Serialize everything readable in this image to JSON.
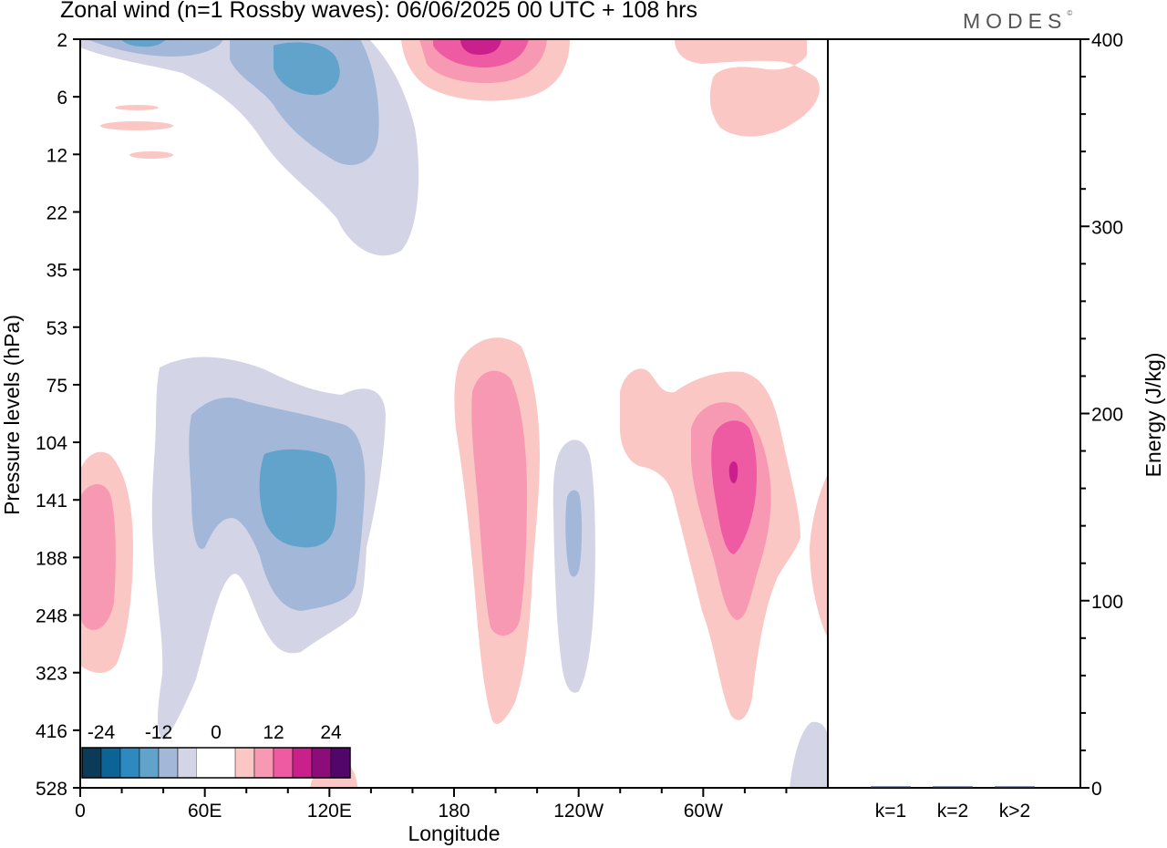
{
  "header": {
    "title": "Zonal wind (n=1 Rossby waves):  06/06/2025  00 UTC  + 108 hrs",
    "brand": "MODES",
    "brand_mark": "©"
  },
  "chart_data": [
    {
      "type": "contour",
      "xlabel": "Longitude",
      "ylabel": "Pressure levels (hPa)",
      "xticks": [
        "0",
        "60E",
        "120E",
        "180",
        "120W",
        "60W"
      ],
      "xtick_values_deg_east": [
        0,
        60,
        120,
        180,
        240,
        300
      ],
      "xlim_deg_east": [
        0,
        360
      ],
      "yticks": [
        "2",
        "6",
        "12",
        "22",
        "35",
        "53",
        "75",
        "104",
        "141",
        "188",
        "248",
        "323",
        "416",
        "528"
      ],
      "y_scale": "pressure levels (top = 2 hPa, bottom = 528 hPa)",
      "colorbar": {
        "tick_labels": [
          "-24",
          "-12",
          "0",
          "12",
          "24"
        ],
        "colors": [
          "#0b3b58",
          "#0b6396",
          "#2d89bf",
          "#62a3cb",
          "#a3b8d8",
          "#d3d5e7",
          "#ffffff",
          "#ffffff",
          "#fbc7c5",
          "#f799b3",
          "#ee5ba3",
          "#c9208b",
          "#8c0c7c",
          "#52066a"
        ],
        "position": "bottom-left"
      },
      "features": [
        {
          "sign": "negative",
          "min_level": -12,
          "lon_center": 40,
          "p_center": 141,
          "note": "easterly anomaly, upper troposphere"
        },
        {
          "sign": "positive",
          "min_level": 12,
          "lon_center": 195,
          "p_center": 141,
          "note": "westerly anomaly"
        },
        {
          "sign": "positive",
          "min_level": 18,
          "lon_center": 312,
          "p_center": 120
        },
        {
          "sign": "negative",
          "min_level": -12,
          "lon_center": 95,
          "p_center": 5,
          "note": "stratosphere"
        },
        {
          "sign": "positive",
          "min_level": 18,
          "lon_center": 188,
          "p_center": 2
        },
        {
          "sign": "positive",
          "min_level": 12,
          "lon_center": 10,
          "p_center": 188
        }
      ]
    },
    {
      "type": "bar",
      "ylabel": "Energy (J/kg)",
      "categories": [
        "k=1",
        "k=2",
        "k>2"
      ],
      "values": [
        0.3,
        0.6,
        0.3
      ],
      "ylim": [
        0,
        400
      ],
      "yticks": [
        "0",
        "100",
        "200",
        "300",
        "400"
      ],
      "bar_color": "#1a2a6a"
    }
  ]
}
